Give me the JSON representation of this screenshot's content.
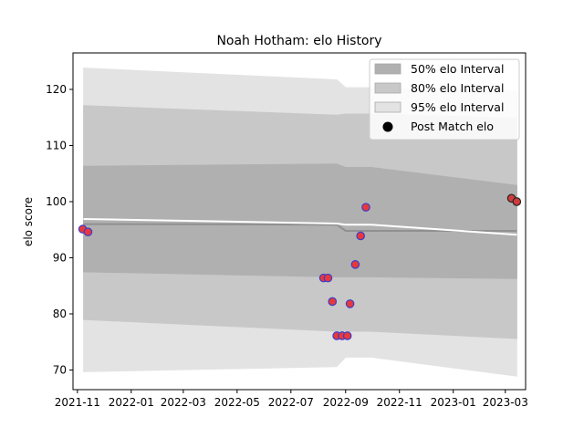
{
  "chart_data": {
    "type": "scatter",
    "title": "Noah Hotham: elo History",
    "xlabel": "",
    "ylabel": "elo score",
    "x_type": "date",
    "xlim": [
      "2021-10-27",
      "2023-03-24"
    ],
    "ylim": [
      66.5,
      126.5
    ],
    "x_ticks": [
      "2021-11",
      "2022-01",
      "2022-03",
      "2022-05",
      "2022-07",
      "2022-09",
      "2022-11",
      "2023-01",
      "2023-03"
    ],
    "x_tick_dates": [
      "2021-11-01",
      "2022-01-01",
      "2022-03-01",
      "2022-05-01",
      "2022-07-01",
      "2022-09-01",
      "2022-11-01",
      "2023-01-01",
      "2023-03-01"
    ],
    "y_ticks": [
      70,
      80,
      90,
      100,
      110,
      120
    ],
    "grid": false,
    "legend_position": "top-right",
    "legend": [
      "50% elo Interval",
      "80% elo Interval",
      "95% elo Interval",
      "Post Match elo"
    ],
    "band_x": [
      "2021-11-08",
      "2022-08-22",
      "2022-09-01",
      "2022-09-30",
      "2023-03-14"
    ],
    "bands": [
      {
        "name": "95% elo Interval",
        "color": "#e3e3e3",
        "upper": [
          123.8,
          121.7,
          120.3,
          120.3,
          119.8
        ],
        "lower": [
          69.7,
          70.6,
          72.3,
          72.3,
          68.9
        ]
      },
      {
        "name": "80% elo Interval",
        "color": "#c8c8c8",
        "upper": [
          117.1,
          115.4,
          115.6,
          115.6,
          114.9
        ],
        "lower": [
          79.0,
          76.9,
          76.9,
          76.9,
          75.6
        ]
      },
      {
        "name": "50% elo Interval",
        "color": "#b0b0b0",
        "upper": [
          106.3,
          106.7,
          106.1,
          106.1,
          102.9
        ],
        "lower": [
          87.5,
          86.6,
          86.6,
          86.6,
          86.3
        ]
      }
    ],
    "mean_line": {
      "color": "#909090",
      "x": [
        "2021-11-08",
        "2022-08-22",
        "2022-09-01",
        "2023-03-14"
      ],
      "y": [
        96.0,
        95.9,
        94.8,
        94.8
      ]
    },
    "median_line": {
      "color": "#ffffff",
      "x": [
        "2021-11-08",
        "2022-08-22",
        "2022-09-01",
        "2022-09-30",
        "2023-03-14"
      ],
      "y": [
        96.9,
        96.1,
        95.9,
        95.9,
        94.1
      ]
    },
    "points": [
      {
        "x": "2021-11-07",
        "y": 95.1,
        "fill": "#e8383b",
        "edge": "#3c3cc8"
      },
      {
        "x": "2021-11-13",
        "y": 94.6,
        "fill": "#e8383b",
        "edge": "#3c3cc8"
      },
      {
        "x": "2022-08-07",
        "y": 86.4,
        "fill": "#e8383b",
        "edge": "#3c3cc8"
      },
      {
        "x": "2022-08-12",
        "y": 86.4,
        "fill": "#e8383b",
        "edge": "#3c3cc8"
      },
      {
        "x": "2022-08-17",
        "y": 82.2,
        "fill": "#e8383b",
        "edge": "#3c3cc8"
      },
      {
        "x": "2022-08-22",
        "y": 76.1,
        "fill": "#e8383b",
        "edge": "#3c3cc8"
      },
      {
        "x": "2022-08-28",
        "y": 76.1,
        "fill": "#e8383b",
        "edge": "#3c3cc8"
      },
      {
        "x": "2022-09-03",
        "y": 76.1,
        "fill": "#e8383b",
        "edge": "#3c3cc8"
      },
      {
        "x": "2022-09-06",
        "y": 81.8,
        "fill": "#e8383b",
        "edge": "#3c3cc8"
      },
      {
        "x": "2022-09-12",
        "y": 88.8,
        "fill": "#e8383b",
        "edge": "#3c3cc8"
      },
      {
        "x": "2022-09-18",
        "y": 93.9,
        "fill": "#e8383b",
        "edge": "#3c3cc8"
      },
      {
        "x": "2022-09-24",
        "y": 99.0,
        "fill": "#e8383b",
        "edge": "#3c3cc8"
      },
      {
        "x": "2023-03-08",
        "y": 100.6,
        "fill": "#d13b3b",
        "edge": "#222222"
      },
      {
        "x": "2023-03-14",
        "y": 100.0,
        "fill": "#d13b3b",
        "edge": "#222222"
      }
    ]
  }
}
